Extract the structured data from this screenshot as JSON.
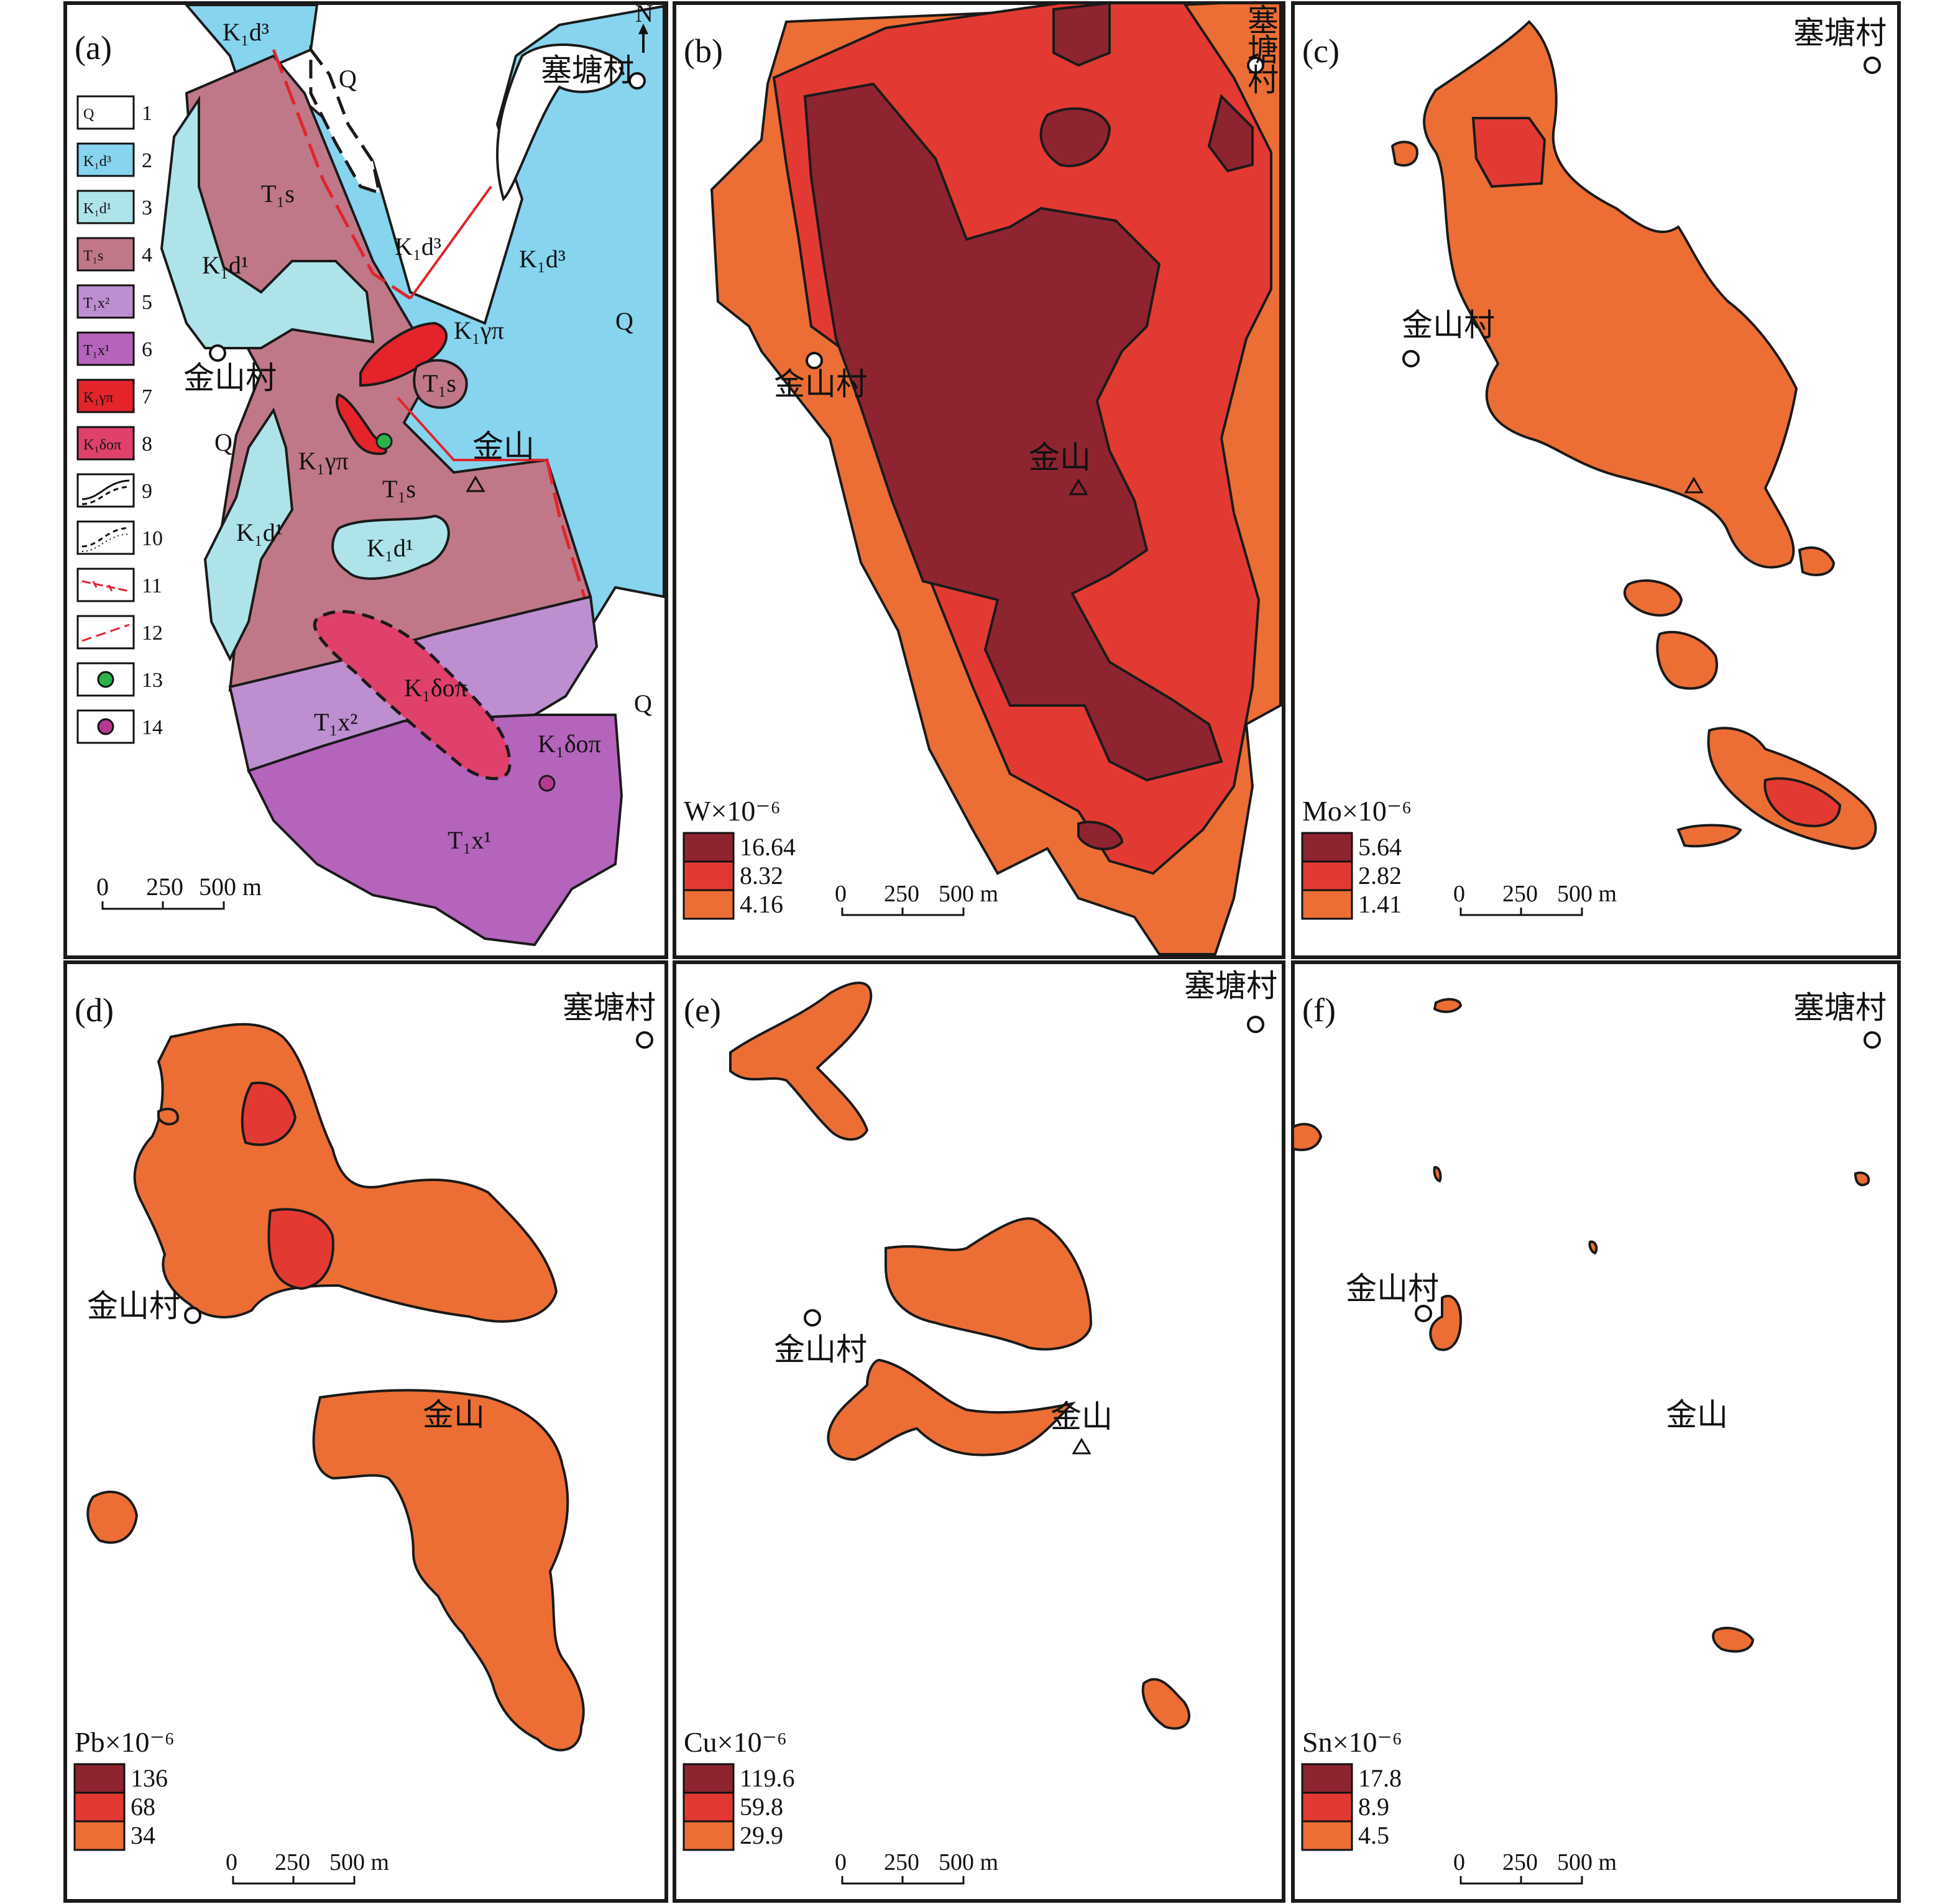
{
  "colors": {
    "high": "#8e2430",
    "mid": "#e23a32",
    "low": "#ec6e34",
    "q": "#ffffff",
    "k1d3": "#86d4ee",
    "k1d1": "#aee3ea",
    "t1s": "#c07888",
    "t1x2": "#bd8ed0",
    "t1x1": "#b564bc",
    "k1gamma": "#e4232b",
    "k1delta": "#e0416a",
    "drill": "#2bb24a",
    "fault": "#e0252b"
  },
  "panel_a": {
    "tag": "(a)",
    "north": "N",
    "village_top": "塞塘村",
    "village_left": "金山村",
    "mountain": "金山",
    "units": {
      "q": "Q",
      "k1d3_1": "K₁d³",
      "k1d3_2": "K₁d³",
      "k1d3_3": "K₁d³",
      "k1d1_1": "K₁d¹",
      "k1d1_2": "K₁d¹",
      "k1d1_3": "K₁d¹",
      "t1s_1": "T₁s",
      "t1s_2": "T₁s",
      "t1s_3": "T₁s",
      "gamma_1": "K₁γπ",
      "gamma_2": "K₁γπ",
      "delta_1": "K₁δοπ",
      "delta_2": "K₁δοπ",
      "t1x2": "T₁x²",
      "t1x1": "T₁x¹"
    },
    "legend": [
      {
        "num": "1",
        "label": "Q"
      },
      {
        "num": "2",
        "label": "K₁d³"
      },
      {
        "num": "3",
        "label": "K₁d¹"
      },
      {
        "num": "4",
        "label": "T₁s"
      },
      {
        "num": "5",
        "label": "T₁x²"
      },
      {
        "num": "6",
        "label": "T₁x¹"
      },
      {
        "num": "7",
        "label": "K₁γπ"
      },
      {
        "num": "8",
        "label": "K₁δοπ"
      },
      {
        "num": "9",
        "label": ""
      },
      {
        "num": "10",
        "label": ""
      },
      {
        "num": "11",
        "label": ""
      },
      {
        "num": "12",
        "label": ""
      },
      {
        "num": "13",
        "label": ""
      },
      {
        "num": "14",
        "label": ""
      }
    ],
    "scale": {
      "t0": "0",
      "t1": "250",
      "t2": "500 m"
    }
  },
  "panels": [
    {
      "tag": "(b)",
      "element": "W×10⁻⁶",
      "legend_values": [
        "16.64",
        "8.32",
        "4.16"
      ],
      "village_top": "塞\n塘\n村",
      "village_left": "金山村",
      "mountain": "金山",
      "scale": {
        "t0": "0",
        "t1": "250",
        "t2": "500 m"
      }
    },
    {
      "tag": "(c)",
      "element": "Mo×10⁻⁶",
      "legend_values": [
        "5.64",
        "2.82",
        "1.41"
      ],
      "village_top": "塞塘村",
      "village_left": "金山村",
      "mountain": "",
      "scale": {
        "t0": "0",
        "t1": "250",
        "t2": "500 m"
      }
    },
    {
      "tag": "(d)",
      "element": "Pb×10⁻⁶",
      "legend_values": [
        "136",
        "68",
        "34"
      ],
      "village_top": "塞塘村",
      "village_left": "金山村",
      "mountain": "金山",
      "scale": {
        "t0": "0",
        "t1": "250",
        "t2": "500 m"
      }
    },
    {
      "tag": "(e)",
      "element": "Cu×10⁻⁶",
      "legend_values": [
        "119.6",
        "59.8",
        "29.9"
      ],
      "village_top": "塞塘村",
      "village_left": "金山村",
      "mountain": "金山",
      "scale": {
        "t0": "0",
        "t1": "250",
        "t2": "500 m"
      }
    },
    {
      "tag": "(f)",
      "element": "Sn×10⁻⁶",
      "legend_values": [
        "17.8",
        "8.9",
        "4.5"
      ],
      "village_top": "塞塘村",
      "village_left": "金山村",
      "mountain": "金山",
      "scale": {
        "t0": "0",
        "t1": "250",
        "t2": "500 m"
      }
    }
  ]
}
